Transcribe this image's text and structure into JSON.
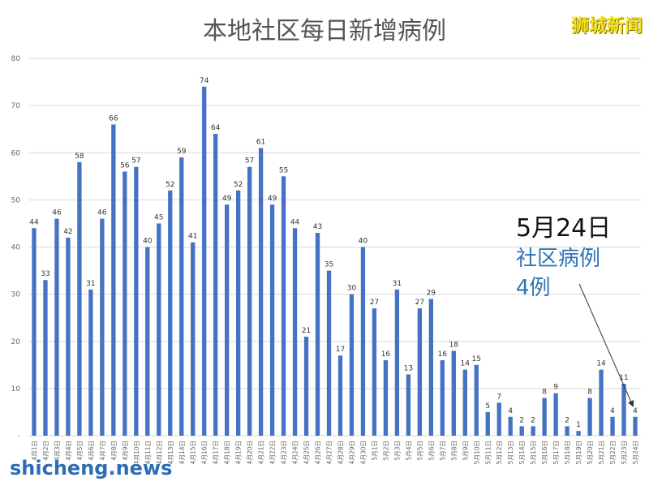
{
  "brand": "狮城新闻",
  "footer": "shicheng.news",
  "annotation": {
    "date": "5月24日",
    "line2": "社区病例",
    "line3": "4例"
  },
  "colors": {
    "bar": "#4472c4",
    "brand": "#f2e21a",
    "annotation": "#2e75b6"
  },
  "chart_data": {
    "type": "bar",
    "title": "本地社区每日新增病例",
    "xlabel": "",
    "ylabel": "",
    "ylim": [
      0,
      80
    ],
    "yticks": [
      0,
      10,
      20,
      30,
      40,
      50,
      60,
      70,
      80
    ],
    "grid": true,
    "categories": [
      "4月1日",
      "4月2日",
      "4月3日",
      "4月4日",
      "4月5日",
      "4月6日",
      "4月7日",
      "4月8日",
      "4月9日",
      "4月10日",
      "4月11日",
      "4月12日",
      "4月13日",
      "4月14日",
      "4月15日",
      "4月16日",
      "4月17日",
      "4月18日",
      "4月19日",
      "4月20日",
      "4月21日",
      "4月22日",
      "4月23日",
      "4月24日",
      "4月25日",
      "4月26日",
      "4月27日",
      "4月28日",
      "4月29日",
      "4月30日",
      "5月1日",
      "5月2日",
      "5月3日",
      "5月4日",
      "5月5日",
      "5月6日",
      "5月7日",
      "5月8日",
      "5月9日",
      "5月10日",
      "5月11日",
      "5月12日",
      "5月13日",
      "5月14日",
      "5月15日",
      "5月16日",
      "5月17日",
      "5月18日",
      "5月19日",
      "5月20日",
      "5月21日",
      "5月22日",
      "5月23日",
      "5月24日"
    ],
    "values": [
      44,
      33,
      46,
      42,
      58,
      31,
      46,
      66,
      56,
      57,
      40,
      45,
      52,
      59,
      41,
      74,
      64,
      49,
      52,
      57,
      61,
      49,
      55,
      44,
      21,
      43,
      35,
      17,
      30,
      40,
      27,
      16,
      31,
      13,
      27,
      29,
      16,
      18,
      14,
      15,
      5,
      7,
      4,
      2,
      2,
      8,
      9,
      2,
      1,
      8,
      14,
      4,
      11,
      4
    ]
  }
}
